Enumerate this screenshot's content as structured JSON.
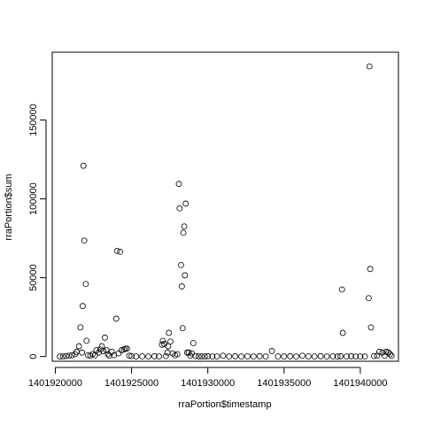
{
  "chart_data": {
    "type": "scatter",
    "xlabel": "rraPortion$timestamp",
    "ylabel": "rraPortion$sum",
    "xlim": [
      1401919800,
      1401942500
    ],
    "ylim": [
      -3000,
      193000
    ],
    "x_ticks": [
      1401920000,
      1401925000,
      1401930000,
      1401935000,
      1401940000
    ],
    "x_tick_labels": [
      "1401920000",
      "1401925000",
      "1401930000",
      "1401935000",
      "1401940000"
    ],
    "y_ticks": [
      0,
      50000,
      100000,
      150000
    ],
    "y_tick_labels": [
      "0",
      "50000",
      "100000",
      "150000"
    ],
    "grid": false,
    "legend": false,
    "series": [
      {
        "points": [
          [
            1401920300,
            0
          ],
          [
            1401920500,
            0
          ],
          [
            1401920700,
            300
          ],
          [
            1401920900,
            500
          ],
          [
            1401921100,
            800
          ],
          [
            1401921300,
            1500
          ],
          [
            1401921400,
            3000
          ],
          [
            1401921550,
            6500
          ],
          [
            1401921650,
            18500
          ],
          [
            1401921750,
            2500
          ],
          [
            1401921800,
            32000
          ],
          [
            1401921850,
            121000
          ],
          [
            1401921900,
            73500
          ],
          [
            1401922000,
            46000
          ],
          [
            1401922050,
            10000
          ],
          [
            1401922150,
            800
          ],
          [
            1401922300,
            500
          ],
          [
            1401922450,
            1500
          ],
          [
            1401922600,
            800
          ],
          [
            1401922700,
            4000
          ],
          [
            1401922850,
            2500
          ],
          [
            1401922950,
            4500
          ],
          [
            1401923050,
            6500
          ],
          [
            1401923150,
            3500
          ],
          [
            1401923250,
            12000
          ],
          [
            1401923350,
            4000
          ],
          [
            1401923450,
            1500
          ],
          [
            1401923550,
            500
          ],
          [
            1401923700,
            3000
          ],
          [
            1401923850,
            800
          ],
          [
            1401924000,
            24000
          ],
          [
            1401924050,
            67000
          ],
          [
            1401924150,
            2000
          ],
          [
            1401924250,
            66500
          ],
          [
            1401924350,
            4000
          ],
          [
            1401924500,
            4500
          ],
          [
            1401924600,
            5000
          ],
          [
            1401924700,
            5000
          ],
          [
            1401924850,
            500
          ],
          [
            1401925000,
            300
          ],
          [
            1401925300,
            0
          ],
          [
            1401925700,
            100
          ],
          [
            1401926100,
            0
          ],
          [
            1401926500,
            200
          ],
          [
            1401926800,
            0
          ],
          [
            1401927000,
            7500
          ],
          [
            1401927050,
            10000
          ],
          [
            1401927150,
            8000
          ],
          [
            1401927250,
            300
          ],
          [
            1401927350,
            2500
          ],
          [
            1401927400,
            6500
          ],
          [
            1401927450,
            15000
          ],
          [
            1401927550,
            9500
          ],
          [
            1401927700,
            2000
          ],
          [
            1401927850,
            800
          ],
          [
            1401928000,
            1500
          ],
          [
            1401928100,
            109500
          ],
          [
            1401928150,
            94000
          ],
          [
            1401928250,
            58000
          ],
          [
            1401928300,
            44500
          ],
          [
            1401928350,
            18000
          ],
          [
            1401928400,
            78500
          ],
          [
            1401928450,
            82500
          ],
          [
            1401928500,
            51500
          ],
          [
            1401928550,
            97000
          ],
          [
            1401928650,
            2500
          ],
          [
            1401928750,
            2500
          ],
          [
            1401928850,
            500
          ],
          [
            1401928950,
            2000
          ],
          [
            1401929050,
            8500
          ],
          [
            1401929200,
            300
          ],
          [
            1401929400,
            0
          ],
          [
            1401929600,
            100
          ],
          [
            1401929800,
            0
          ],
          [
            1401930000,
            200
          ],
          [
            1401930300,
            0
          ],
          [
            1401930600,
            100
          ],
          [
            1401931000,
            500
          ],
          [
            1401931400,
            0
          ],
          [
            1401931800,
            200
          ],
          [
            1401932200,
            0
          ],
          [
            1401932600,
            100
          ],
          [
            1401933000,
            0
          ],
          [
            1401933400,
            200
          ],
          [
            1401933800,
            0
          ],
          [
            1401934200,
            3500
          ],
          [
            1401934600,
            100
          ],
          [
            1401935000,
            0
          ],
          [
            1401935400,
            200
          ],
          [
            1401935800,
            0
          ],
          [
            1401936200,
            500
          ],
          [
            1401936600,
            100
          ],
          [
            1401937000,
            0
          ],
          [
            1401937400,
            200
          ],
          [
            1401937800,
            0
          ],
          [
            1401938200,
            100
          ],
          [
            1401938500,
            0
          ],
          [
            1401938700,
            200
          ],
          [
            1401938800,
            42500
          ],
          [
            1401938850,
            15000
          ],
          [
            1401939100,
            0
          ],
          [
            1401939400,
            200
          ],
          [
            1401939700,
            0
          ],
          [
            1401940000,
            100
          ],
          [
            1401940300,
            0
          ],
          [
            1401940550,
            37000
          ],
          [
            1401940600,
            184000
          ],
          [
            1401940650,
            55500
          ],
          [
            1401940700,
            18500
          ],
          [
            1401940900,
            300
          ],
          [
            1401941100,
            500
          ],
          [
            1401941250,
            3000
          ],
          [
            1401941450,
            2500
          ],
          [
            1401941600,
            500
          ],
          [
            1401941700,
            3000
          ],
          [
            1401941850,
            2500
          ],
          [
            1401941950,
            1500
          ],
          [
            1401942050,
            500
          ]
        ]
      }
    ]
  }
}
